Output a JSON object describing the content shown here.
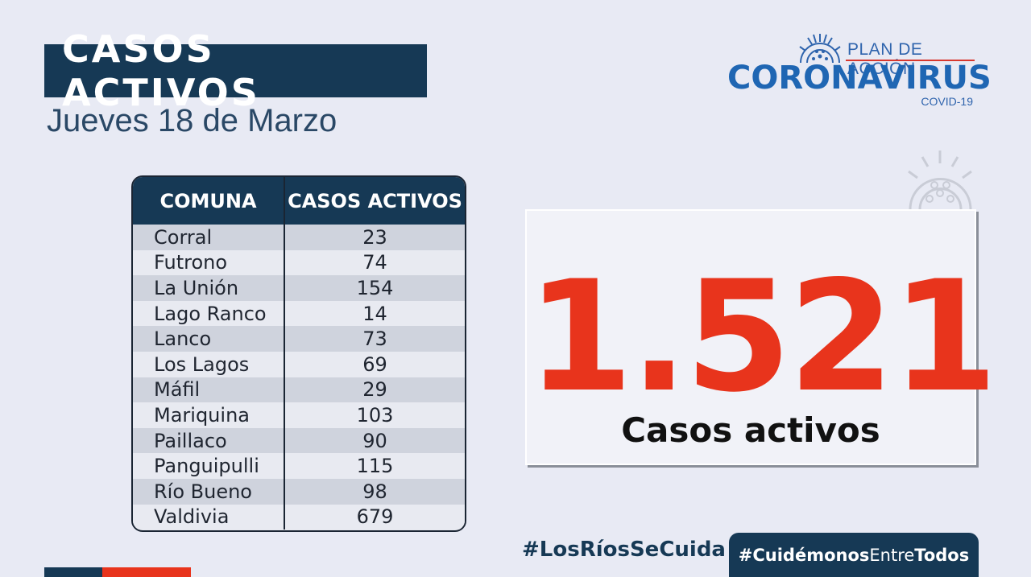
{
  "header": {
    "title": "CASOS ACTIVOS",
    "date": "Jueves 18 de Marzo"
  },
  "logo": {
    "plan": "PLAN DE ACCIÓN",
    "main": "CORONAVIRUS",
    "sub": "COVID-19",
    "icon": "coronavirus-icon"
  },
  "table": {
    "headers": [
      "COMUNA",
      "CASOS ACTIVOS"
    ],
    "rows": [
      {
        "comuna": "Corral",
        "casos": "23"
      },
      {
        "comuna": "Futrono",
        "casos": "74"
      },
      {
        "comuna": "La Unión",
        "casos": "154"
      },
      {
        "comuna": "Lago Ranco",
        "casos": "14"
      },
      {
        "comuna": "Lanco",
        "casos": "73"
      },
      {
        "comuna": "Los Lagos",
        "casos": "69"
      },
      {
        "comuna": "Máfil",
        "casos": "29"
      },
      {
        "comuna": "Mariquina",
        "casos": "103"
      },
      {
        "comuna": "Paillaco",
        "casos": "90"
      },
      {
        "comuna": "Panguipulli",
        "casos": "115"
      },
      {
        "comuna": "Río Bueno",
        "casos": "98"
      },
      {
        "comuna": "Valdivia",
        "casos": "679"
      }
    ]
  },
  "total": {
    "value": "1.521",
    "label": "Casos activos"
  },
  "hashtags": {
    "first": "#LosRíosSeCuida",
    "second_prefix": "#Cuidémonos",
    "second_mid": "Entre",
    "second_suffix": "Todos"
  },
  "colors": {
    "navy": "#163955",
    "red": "#e8341c",
    "blue": "#1f66b3",
    "background": "#e8eaf4"
  }
}
